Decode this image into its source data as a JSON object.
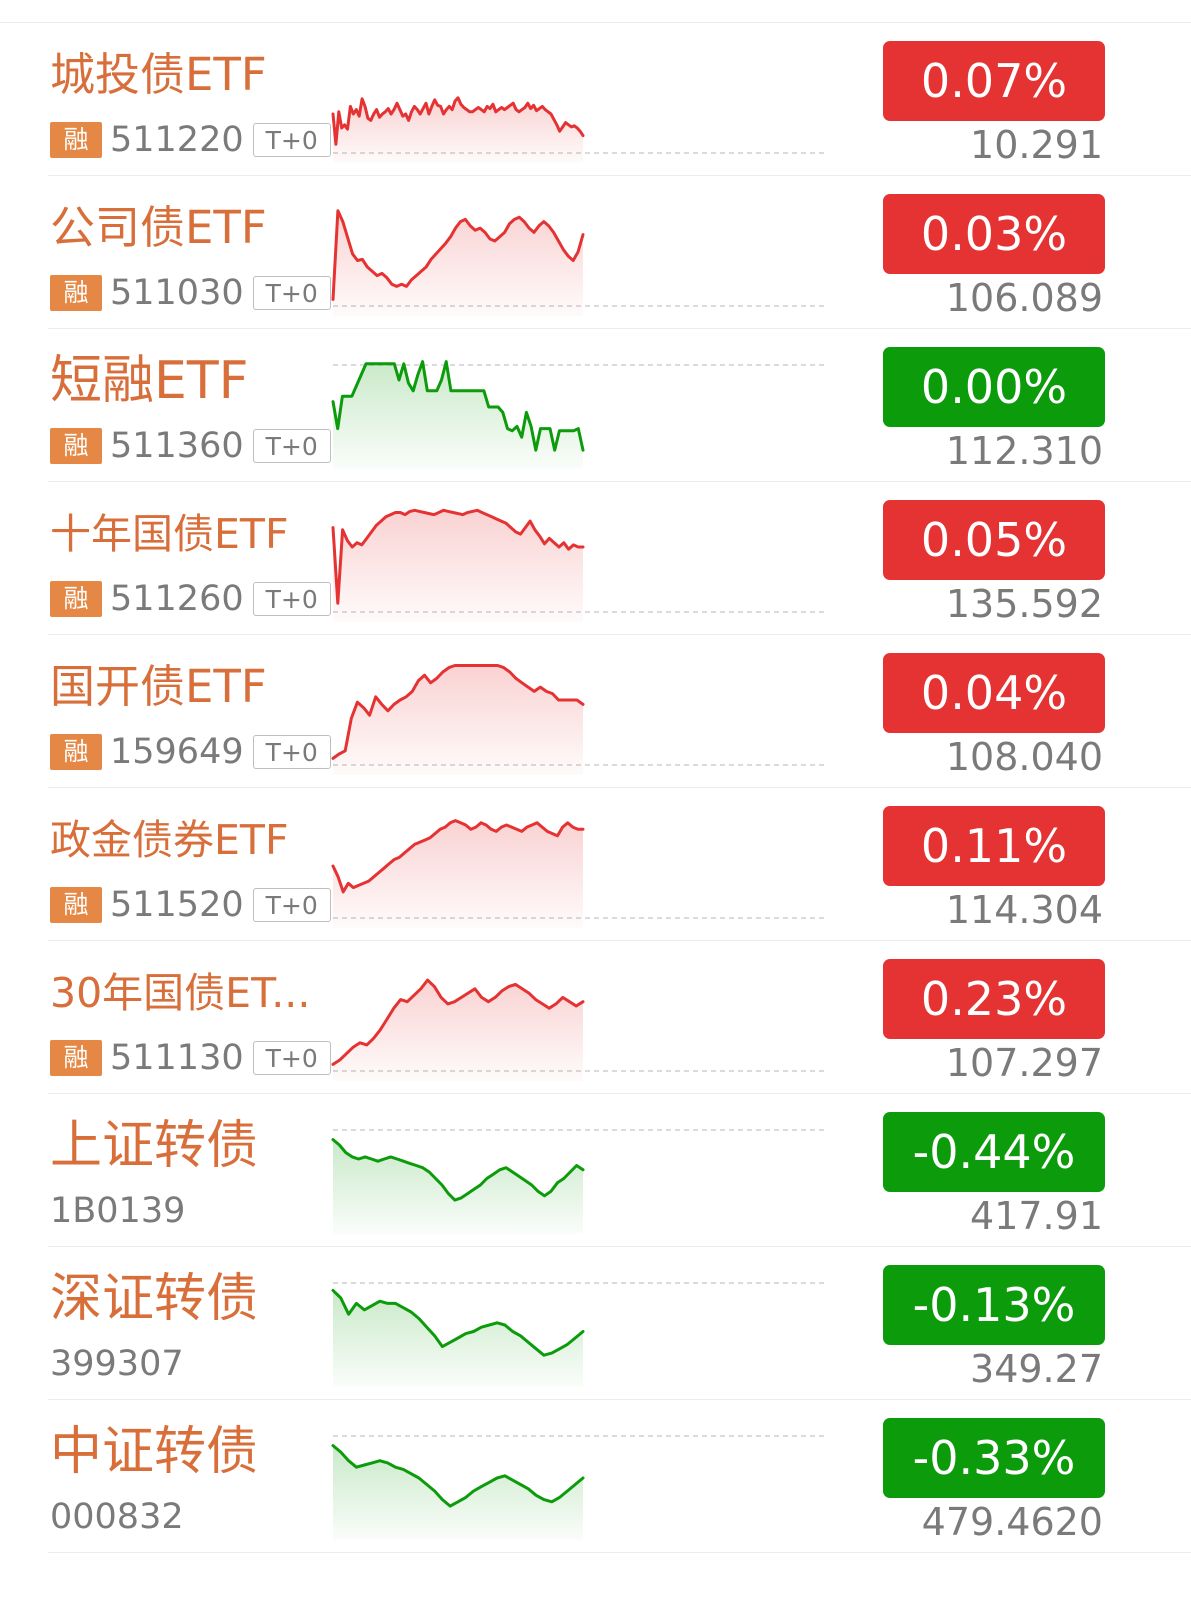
{
  "colors": {
    "up": "#e53232",
    "down": "#0b9b0b",
    "name": "#d86f3a",
    "tag_rong": "#e58845",
    "muted": "#7a7a7a"
  },
  "rows": [
    {
      "name": "城投债ETF",
      "tag": "融",
      "code": "511220",
      "t0": "T+0",
      "change": "0.07%",
      "direction": "up",
      "price": "10.291",
      "spark": [
        0.62,
        0.9,
        0.6,
        0.75,
        0.72,
        0.76,
        0.55,
        0.62,
        0.58,
        0.64,
        0.48,
        0.55,
        0.66,
        0.68,
        0.62,
        0.58,
        0.65,
        0.62,
        0.6,
        0.57,
        0.62,
        0.58,
        0.52,
        0.58,
        0.64,
        0.62,
        0.68,
        0.6,
        0.55,
        0.58,
        0.62,
        0.57,
        0.52,
        0.62,
        0.55,
        0.49,
        0.54,
        0.55,
        0.62,
        0.58,
        0.55,
        0.58,
        0.5,
        0.47,
        0.53,
        0.56,
        0.58,
        0.6,
        0.6,
        0.58,
        0.56,
        0.58,
        0.6,
        0.55,
        0.57,
        0.53,
        0.6,
        0.58,
        0.56,
        0.58,
        0.56,
        0.54,
        0.52,
        0.58,
        0.6,
        0.58,
        0.56,
        0.52,
        0.57,
        0.54,
        0.59,
        0.57,
        0.55,
        0.58,
        0.6,
        0.62,
        0.67,
        0.72,
        0.78,
        0.74,
        0.7,
        0.72,
        0.74,
        0.73,
        0.75,
        0.78,
        0.82
      ]
    },
    {
      "name": "公司债ETF",
      "tag": "融",
      "code": "511030",
      "t0": "T+0",
      "change": "0.03%",
      "direction": "up",
      "price": "106.089",
      "spark": [
        0.92,
        0.1,
        0.2,
        0.35,
        0.5,
        0.56,
        0.55,
        0.62,
        0.66,
        0.7,
        0.68,
        0.72,
        0.78,
        0.8,
        0.78,
        0.8,
        0.74,
        0.7,
        0.66,
        0.62,
        0.55,
        0.5,
        0.45,
        0.4,
        0.34,
        0.26,
        0.2,
        0.18,
        0.24,
        0.28,
        0.26,
        0.3,
        0.36,
        0.38,
        0.34,
        0.3,
        0.22,
        0.18,
        0.16,
        0.2,
        0.26,
        0.3,
        0.24,
        0.2,
        0.24,
        0.3,
        0.38,
        0.46,
        0.52,
        0.56,
        0.48,
        0.32
      ]
    },
    {
      "name": "短融ETF",
      "tag": "融",
      "code": "511360",
      "t0": "T+0",
      "change": "0.00%",
      "direction": "down",
      "price": "112.310",
      "spark": [
        0.45,
        0.7,
        0.4,
        0.4,
        0.4,
        0.3,
        0.2,
        0.1,
        0.1,
        0.1,
        0.1,
        0.1,
        0.1,
        0.1,
        0.25,
        0.1,
        0.28,
        0.35,
        0.2,
        0.08,
        0.35,
        0.35,
        0.35,
        0.25,
        0.08,
        0.35,
        0.35,
        0.35,
        0.35,
        0.35,
        0.35,
        0.35,
        0.35,
        0.5,
        0.5,
        0.5,
        0.55,
        0.7,
        0.72,
        0.68,
        0.78,
        0.55,
        0.68,
        0.9,
        0.7,
        0.7,
        0.7,
        0.9,
        0.72,
        0.72,
        0.72,
        0.72,
        0.7,
        0.9
      ]
    },
    {
      "name": "十年国债ETF",
      "tag": "融",
      "code": "511260",
      "t0": "T+0",
      "change": "0.05%",
      "direction": "up",
      "price": "135.592",
      "spark": [
        0.2,
        0.9,
        0.22,
        0.32,
        0.38,
        0.34,
        0.36,
        0.3,
        0.24,
        0.18,
        0.14,
        0.1,
        0.08,
        0.06,
        0.06,
        0.08,
        0.05,
        0.04,
        0.05,
        0.06,
        0.07,
        0.08,
        0.06,
        0.04,
        0.05,
        0.06,
        0.07,
        0.08,
        0.06,
        0.05,
        0.04,
        0.06,
        0.08,
        0.1,
        0.12,
        0.14,
        0.16,
        0.2,
        0.24,
        0.26,
        0.2,
        0.14,
        0.22,
        0.28,
        0.35,
        0.3,
        0.34,
        0.38,
        0.34,
        0.4,
        0.36,
        0.38,
        0.38
      ]
    },
    {
      "name": "国开债ETF",
      "tag": "融",
      "code": "159649",
      "t0": "T+0",
      "change": "0.04%",
      "direction": "up",
      "price": "108.040",
      "spark": [
        0.92,
        0.88,
        0.85,
        0.55,
        0.4,
        0.45,
        0.52,
        0.35,
        0.42,
        0.48,
        0.42,
        0.38,
        0.35,
        0.3,
        0.2,
        0.15,
        0.22,
        0.18,
        0.12,
        0.08,
        0.06,
        0.06,
        0.06,
        0.06,
        0.06,
        0.06,
        0.06,
        0.06,
        0.08,
        0.12,
        0.18,
        0.22,
        0.26,
        0.3,
        0.26,
        0.3,
        0.32,
        0.38,
        0.38,
        0.38,
        0.38,
        0.42
      ]
    },
    {
      "name": "政金债券ETF",
      "tag": "融",
      "code": "511520",
      "t0": "T+0",
      "change": "0.11%",
      "direction": "up",
      "price": "114.304",
      "spark": [
        0.5,
        0.6,
        0.74,
        0.66,
        0.7,
        0.68,
        0.66,
        0.64,
        0.6,
        0.56,
        0.52,
        0.48,
        0.44,
        0.42,
        0.38,
        0.34,
        0.3,
        0.28,
        0.26,
        0.24,
        0.2,
        0.16,
        0.14,
        0.1,
        0.08,
        0.1,
        0.12,
        0.16,
        0.14,
        0.1,
        0.12,
        0.16,
        0.18,
        0.14,
        0.12,
        0.14,
        0.16,
        0.18,
        0.14,
        0.12,
        0.1,
        0.14,
        0.18,
        0.2,
        0.22,
        0.14,
        0.1,
        0.14,
        0.16,
        0.16
      ]
    },
    {
      "name": "30年国债ET...",
      "tag": "融",
      "code": "511130",
      "t0": "T+0",
      "change": "0.23%",
      "direction": "up",
      "price": "107.297",
      "spark": [
        0.92,
        0.88,
        0.82,
        0.76,
        0.72,
        0.74,
        0.68,
        0.6,
        0.5,
        0.4,
        0.32,
        0.34,
        0.28,
        0.22,
        0.14,
        0.2,
        0.3,
        0.36,
        0.34,
        0.3,
        0.26,
        0.22,
        0.3,
        0.34,
        0.3,
        0.24,
        0.2,
        0.18,
        0.22,
        0.26,
        0.32,
        0.36,
        0.4,
        0.36,
        0.3,
        0.34,
        0.38,
        0.34
      ]
    },
    {
      "name": "上证转债",
      "tag": "",
      "code": "1B0139",
      "t0": "",
      "change": "-0.44%",
      "direction": "down",
      "price": "417.91",
      "spark": [
        0.2,
        0.25,
        0.32,
        0.36,
        0.38,
        0.36,
        0.38,
        0.4,
        0.38,
        0.36,
        0.38,
        0.4,
        0.42,
        0.44,
        0.46,
        0.5,
        0.56,
        0.62,
        0.7,
        0.76,
        0.74,
        0.7,
        0.66,
        0.62,
        0.56,
        0.52,
        0.48,
        0.46,
        0.5,
        0.54,
        0.58,
        0.62,
        0.68,
        0.72,
        0.68,
        0.6,
        0.56,
        0.5,
        0.44,
        0.48
      ]
    },
    {
      "name": "深证转债",
      "tag": "",
      "code": "399307",
      "t0": "",
      "change": "-0.13%",
      "direction": "down",
      "price": "349.27",
      "spark": [
        0.18,
        0.25,
        0.4,
        0.3,
        0.36,
        0.32,
        0.28,
        0.3,
        0.3,
        0.34,
        0.38,
        0.44,
        0.52,
        0.6,
        0.7,
        0.66,
        0.62,
        0.58,
        0.56,
        0.52,
        0.5,
        0.48,
        0.5,
        0.56,
        0.6,
        0.66,
        0.72,
        0.78,
        0.76,
        0.72,
        0.68,
        0.62,
        0.56
      ]
    },
    {
      "name": "中证转债",
      "tag": "",
      "code": "000832",
      "t0": "",
      "change": "-0.33%",
      "direction": "down",
      "price": "479.4620",
      "spark": [
        0.2,
        0.26,
        0.34,
        0.4,
        0.38,
        0.36,
        0.34,
        0.36,
        0.4,
        0.42,
        0.46,
        0.5,
        0.56,
        0.62,
        0.7,
        0.76,
        0.72,
        0.68,
        0.62,
        0.58,
        0.54,
        0.5,
        0.48,
        0.52,
        0.56,
        0.6,
        0.66,
        0.7,
        0.72,
        0.68,
        0.62,
        0.56,
        0.5
      ]
    }
  ]
}
